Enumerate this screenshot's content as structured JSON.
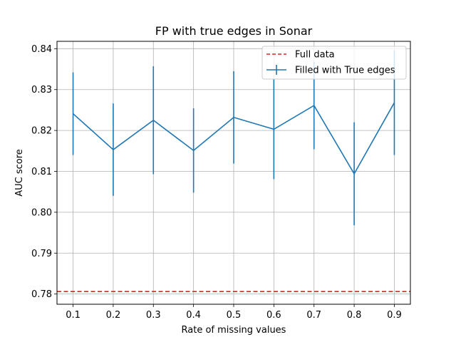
{
  "chart_data": {
    "type": "line",
    "title": "FP with true edges in Sonar",
    "xlabel": "Rate of missing values",
    "ylabel": "AUC score",
    "x": [
      0.1,
      0.2,
      0.3,
      0.4,
      0.5,
      0.6,
      0.7,
      0.8,
      0.9
    ],
    "x_tick_labels": [
      "0.1",
      "0.2",
      "0.3",
      "0.4",
      "0.5",
      "0.6",
      "0.7",
      "0.8",
      "0.9"
    ],
    "y_ticks": [
      0.78,
      0.79,
      0.8,
      0.81,
      0.82,
      0.83,
      0.84
    ],
    "y_tick_labels": [
      "0.78",
      "0.79",
      "0.80",
      "0.81",
      "0.82",
      "0.83",
      "0.84"
    ],
    "xlim": [
      0.06,
      0.94
    ],
    "ylim": [
      0.7775,
      0.8418
    ],
    "grid": true,
    "legend_position": "top-right",
    "series": [
      {
        "name": "Filled with True edges",
        "color": "#1f77b4",
        "style": "solid-with-errorbars",
        "values": [
          0.8241,
          0.8153,
          0.8225,
          0.8151,
          0.8232,
          0.8203,
          0.8261,
          0.8094,
          0.8268
        ],
        "errors": [
          0.0101,
          0.0113,
          0.0132,
          0.0103,
          0.0113,
          0.0122,
          0.0107,
          0.0126,
          0.0128
        ]
      }
    ],
    "reference_lines": [
      {
        "name": "Full data",
        "color": "#d62728",
        "style": "dashed",
        "y": 0.7806
      }
    ]
  }
}
